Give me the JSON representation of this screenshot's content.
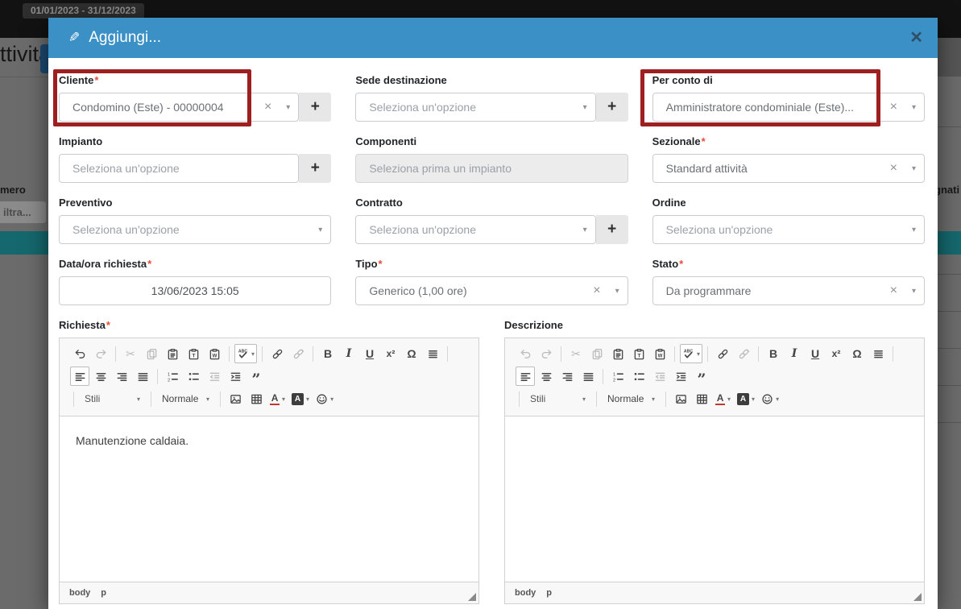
{
  "required_mark": "*",
  "icons": {
    "pencil": "✎",
    "close": "✕",
    "clear": "×",
    "caret": "▾",
    "add": "+"
  },
  "topbar": {
    "date_range": "01/01/2023 - 31/12/2023"
  },
  "backdrop": {
    "page_heading_partial": "ttività",
    "col_numero_partial": "mero",
    "filter_partial": "iltra...",
    "col_right_partial": "gnati",
    "selected_row_color": "#15686d"
  },
  "modal": {
    "title": "Aggiungi...",
    "header_color": "#3b90c5"
  },
  "fields": {
    "cliente": {
      "label": "Cliente",
      "required": true,
      "value": "Condomino (Este) - 00000004"
    },
    "sede": {
      "label": "Sede destinazione",
      "required": false,
      "placeholder": "Seleziona un'opzione"
    },
    "per_conto": {
      "label": "Per conto di",
      "required": false,
      "value": "Amministratore condominiale (Este)..."
    },
    "impianto": {
      "label": "Impianto",
      "required": false,
      "placeholder": "Seleziona un'opzione"
    },
    "componenti": {
      "label": "Componenti",
      "required": false,
      "placeholder": "Seleziona prima un impianto",
      "disabled": true
    },
    "sezionale": {
      "label": "Sezionale",
      "required": true,
      "value": "Standard attività"
    },
    "preventivo": {
      "label": "Preventivo",
      "required": false,
      "placeholder": "Seleziona un'opzione"
    },
    "contratto": {
      "label": "Contratto",
      "required": false,
      "placeholder": "Seleziona un'opzione"
    },
    "ordine": {
      "label": "Ordine",
      "required": false,
      "placeholder": "Seleziona un'opzione"
    },
    "data_ora": {
      "label": "Data/ora richiesta",
      "required": true,
      "value": "13/06/2023 15:05"
    },
    "tipo": {
      "label": "Tipo",
      "required": true,
      "value": "Generico (1,00 ore)"
    },
    "stato": {
      "label": "Stato",
      "required": true,
      "value": "Da programmare"
    }
  },
  "editor": {
    "styles_combo": "Stili",
    "format_combo": "Normale",
    "status_body": "body",
    "status_p": "p",
    "toolbar_rows": [
      [
        "undo",
        "redo",
        "|",
        "cut",
        "copy",
        "paste",
        "paste-text",
        "paste-word",
        "|",
        "spellcheck",
        "|",
        "link",
        "unlink",
        "|",
        "bold",
        "italic",
        "underline",
        "superscript",
        "special-char",
        "create-div",
        "|"
      ],
      [
        "align-left",
        "align-center",
        "align-right",
        "align-justify",
        "|",
        "numbered-list",
        "bulleted-list",
        "outdent",
        "indent",
        "blockquote"
      ],
      [
        "|",
        "styles-combo",
        "|",
        "format-combo",
        "|",
        "image",
        "table",
        "text-color",
        "bg-color",
        "smiley"
      ]
    ]
  },
  "editors": {
    "richiesta": {
      "label": "Richiesta",
      "required": true,
      "content": "Manutenzione caldaia.",
      "disabled_buttons": [
        "redo",
        "cut",
        "copy",
        "unlink",
        "outdent"
      ],
      "boxed_buttons": [
        "spellcheck",
        "align-left"
      ]
    },
    "descrizione": {
      "label": "Descrizione",
      "required": false,
      "content": "",
      "disabled_buttons": [
        "undo",
        "redo",
        "cut",
        "copy",
        "unlink",
        "outdent"
      ],
      "boxed_buttons": [
        "spellcheck",
        "align-left"
      ]
    }
  }
}
